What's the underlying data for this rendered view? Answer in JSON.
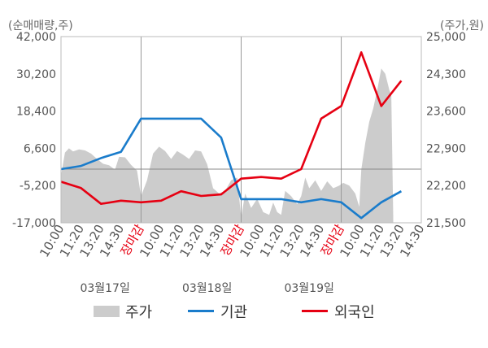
{
  "chart_data": {
    "type": "line",
    "left_axis_unit": "(순매매량,주)",
    "right_axis_unit": "(주가,원)",
    "y_left": {
      "ticks": [
        "42,000",
        "30,200",
        "18,400",
        "6,600",
        "-5,200",
        "-17,000"
      ],
      "min": -17000,
      "max": 42000
    },
    "y_right": {
      "ticks": [
        "25,000",
        "24,300",
        "23,600",
        "22,900",
        "22,200",
        "21,500"
      ],
      "min": 21500,
      "max": 25000
    },
    "x_ticks": [
      "10:00",
      "11:20",
      "13:20",
      "14:30",
      "장마감",
      "10:00",
      "11:20",
      "13:20",
      "14:30",
      "장마감",
      "10:00",
      "11:20",
      "13:20",
      "14:30",
      "장마감",
      "10:00",
      "11:20",
      "13:20",
      "14:30"
    ],
    "x_tick_close_label": "장마감",
    "days": [
      "03월17일",
      "03월18일",
      "03월19일"
    ],
    "legend": {
      "price": "주가",
      "inst": "기관",
      "foreign": "외국인"
    },
    "colors": {
      "price": "#cccccc",
      "inst": "#1a7ccb",
      "foreign": "#e60012"
    },
    "series_inst": [
      [
        0,
        0
      ],
      [
        1,
        1000
      ],
      [
        2,
        3500
      ],
      [
        3,
        5500
      ],
      [
        4,
        16000
      ],
      [
        5,
        16000
      ],
      [
        6,
        16000
      ],
      [
        7,
        16000
      ],
      [
        8,
        10000
      ],
      [
        9,
        -9500
      ],
      [
        10,
        -9500
      ],
      [
        11,
        -9500
      ],
      [
        12,
        -10500
      ],
      [
        13,
        -9500
      ],
      [
        14,
        -10500
      ],
      [
        15,
        -15500
      ],
      [
        16,
        -10500
      ],
      [
        17,
        -7000
      ]
    ],
    "series_foreign": [
      [
        0,
        -4000
      ],
      [
        1,
        -6000
      ],
      [
        2,
        -11000
      ],
      [
        3,
        -10000
      ],
      [
        4,
        -10500
      ],
      [
        5,
        -10000
      ],
      [
        6,
        -7000
      ],
      [
        7,
        -8500
      ],
      [
        8,
        -8000
      ],
      [
        9,
        -3000
      ],
      [
        10,
        -2500
      ],
      [
        11,
        -3000
      ],
      [
        12,
        0
      ],
      [
        13,
        16000
      ],
      [
        14,
        20000
      ],
      [
        15,
        37000
      ],
      [
        16,
        20000
      ],
      [
        17,
        28000
      ]
    ],
    "series_price": [
      [
        0.0,
        22390
      ],
      [
        0.2,
        22820
      ],
      [
        0.4,
        22900
      ],
      [
        0.6,
        22840
      ],
      [
        0.9,
        22880
      ],
      [
        1.2,
        22860
      ],
      [
        1.5,
        22800
      ],
      [
        1.8,
        22700
      ],
      [
        2.1,
        22610
      ],
      [
        2.4,
        22580
      ],
      [
        2.7,
        22500
      ],
      [
        2.9,
        22740
      ],
      [
        3.2,
        22730
      ],
      [
        3.5,
        22590
      ],
      [
        3.8,
        22480
      ],
      [
        4.0,
        22000
      ],
      [
        4.3,
        22300
      ],
      [
        4.6,
        22800
      ],
      [
        4.9,
        22930
      ],
      [
        5.2,
        22850
      ],
      [
        5.5,
        22700
      ],
      [
        5.8,
        22850
      ],
      [
        6.1,
        22780
      ],
      [
        6.4,
        22700
      ],
      [
        6.7,
        22860
      ],
      [
        7.0,
        22840
      ],
      [
        7.3,
        22600
      ],
      [
        7.6,
        22150
      ],
      [
        7.9,
        22050
      ],
      [
        8.2,
        22100
      ],
      [
        8.5,
        22300
      ],
      [
        8.8,
        22350
      ],
      [
        9.0,
        21600
      ],
      [
        9.2,
        22050
      ],
      [
        9.5,
        21780
      ],
      [
        9.8,
        21950
      ],
      [
        10.1,
        21700
      ],
      [
        10.4,
        21650
      ],
      [
        10.6,
        21880
      ],
      [
        10.8,
        21700
      ],
      [
        11.0,
        21650
      ],
      [
        11.2,
        22100
      ],
      [
        11.5,
        22000
      ],
      [
        11.8,
        21850
      ],
      [
        12.0,
        22000
      ],
      [
        12.2,
        22350
      ],
      [
        12.4,
        22150
      ],
      [
        12.7,
        22300
      ],
      [
        13.0,
        22100
      ],
      [
        13.3,
        22280
      ],
      [
        13.6,
        22150
      ],
      [
        13.9,
        22200
      ],
      [
        14.1,
        22250
      ],
      [
        14.4,
        22200
      ],
      [
        14.7,
        22050
      ],
      [
        14.9,
        21800
      ],
      [
        15.0,
        22500
      ],
      [
        15.2,
        23000
      ],
      [
        15.4,
        23400
      ],
      [
        15.6,
        23650
      ],
      [
        15.8,
        24000
      ],
      [
        16.0,
        24400
      ],
      [
        16.2,
        24300
      ],
      [
        16.4,
        24000
      ],
      [
        16.5,
        23900
      ],
      [
        16.6,
        21600
      ]
    ]
  }
}
